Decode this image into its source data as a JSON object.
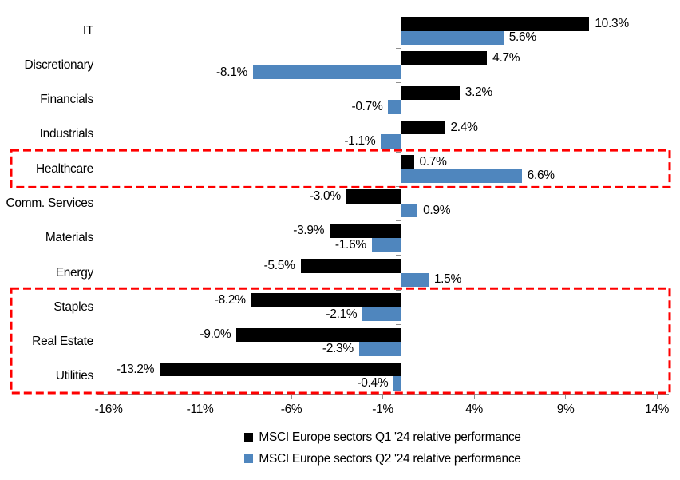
{
  "chart_data": {
    "type": "bar",
    "orientation": "horizontal",
    "title": "",
    "xlabel": "",
    "ylabel": "",
    "grid": false,
    "legend_position": "bottom",
    "data_labels": true,
    "axis_color": "#8F8F8F",
    "xlim": [
      -16.6,
      14.7
    ],
    "categories": [
      "IT",
      "Discretionary",
      "Financials",
      "Industrials",
      "Healthcare",
      "Comm. Services",
      "Materials",
      "Energy",
      "Staples",
      "Real Estate",
      "Utilities"
    ],
    "series": [
      {
        "name": "MSCI Europe sectors Q1 '24 relative performance",
        "color": "#000000",
        "values": [
          10.3,
          4.7,
          3.2,
          2.4,
          0.7,
          -3.0,
          -3.9,
          -5.5,
          -8.2,
          -9.0,
          -13.2
        ],
        "labels": [
          "10.3%",
          "4.7%",
          "3.2%",
          "2.4%",
          "0.7%",
          "-3.0%",
          "-3.9%",
          "-5.5%",
          "-8.2%",
          "-9.0%",
          "-13.2%"
        ]
      },
      {
        "name": "MSCI Europe sectors Q2 '24 relative performance",
        "color": "#4F86BE",
        "values": [
          5.6,
          -8.1,
          -0.7,
          -1.1,
          6.6,
          0.9,
          -1.6,
          1.5,
          -2.1,
          -2.3,
          -0.4
        ],
        "labels": [
          "5.6%",
          "-8.1%",
          "-0.7%",
          "-1.1%",
          "6.6%",
          "0.9%",
          "-1.6%",
          "1.5%",
          "-2.1%",
          "-2.3%",
          "-0.4%"
        ]
      }
    ],
    "x_ticks": [
      {
        "label": "-16%",
        "value": -16
      },
      {
        "label": "-11%",
        "value": -11
      },
      {
        "label": "-6%",
        "value": -6
      },
      {
        "label": "-1%",
        "value": -1
      },
      {
        "label": "4%",
        "value": 4
      },
      {
        "label": "9%",
        "value": 9
      },
      {
        "label": "14%",
        "value": 14
      }
    ],
    "highlight_boxes": [
      {
        "from": "Healthcare",
        "to": "Healthcare",
        "color": "#FF0000",
        "style": "dashed"
      },
      {
        "from": "Staples",
        "to": "Utilities",
        "color": "#FF0000",
        "style": "dashed"
      }
    ]
  }
}
